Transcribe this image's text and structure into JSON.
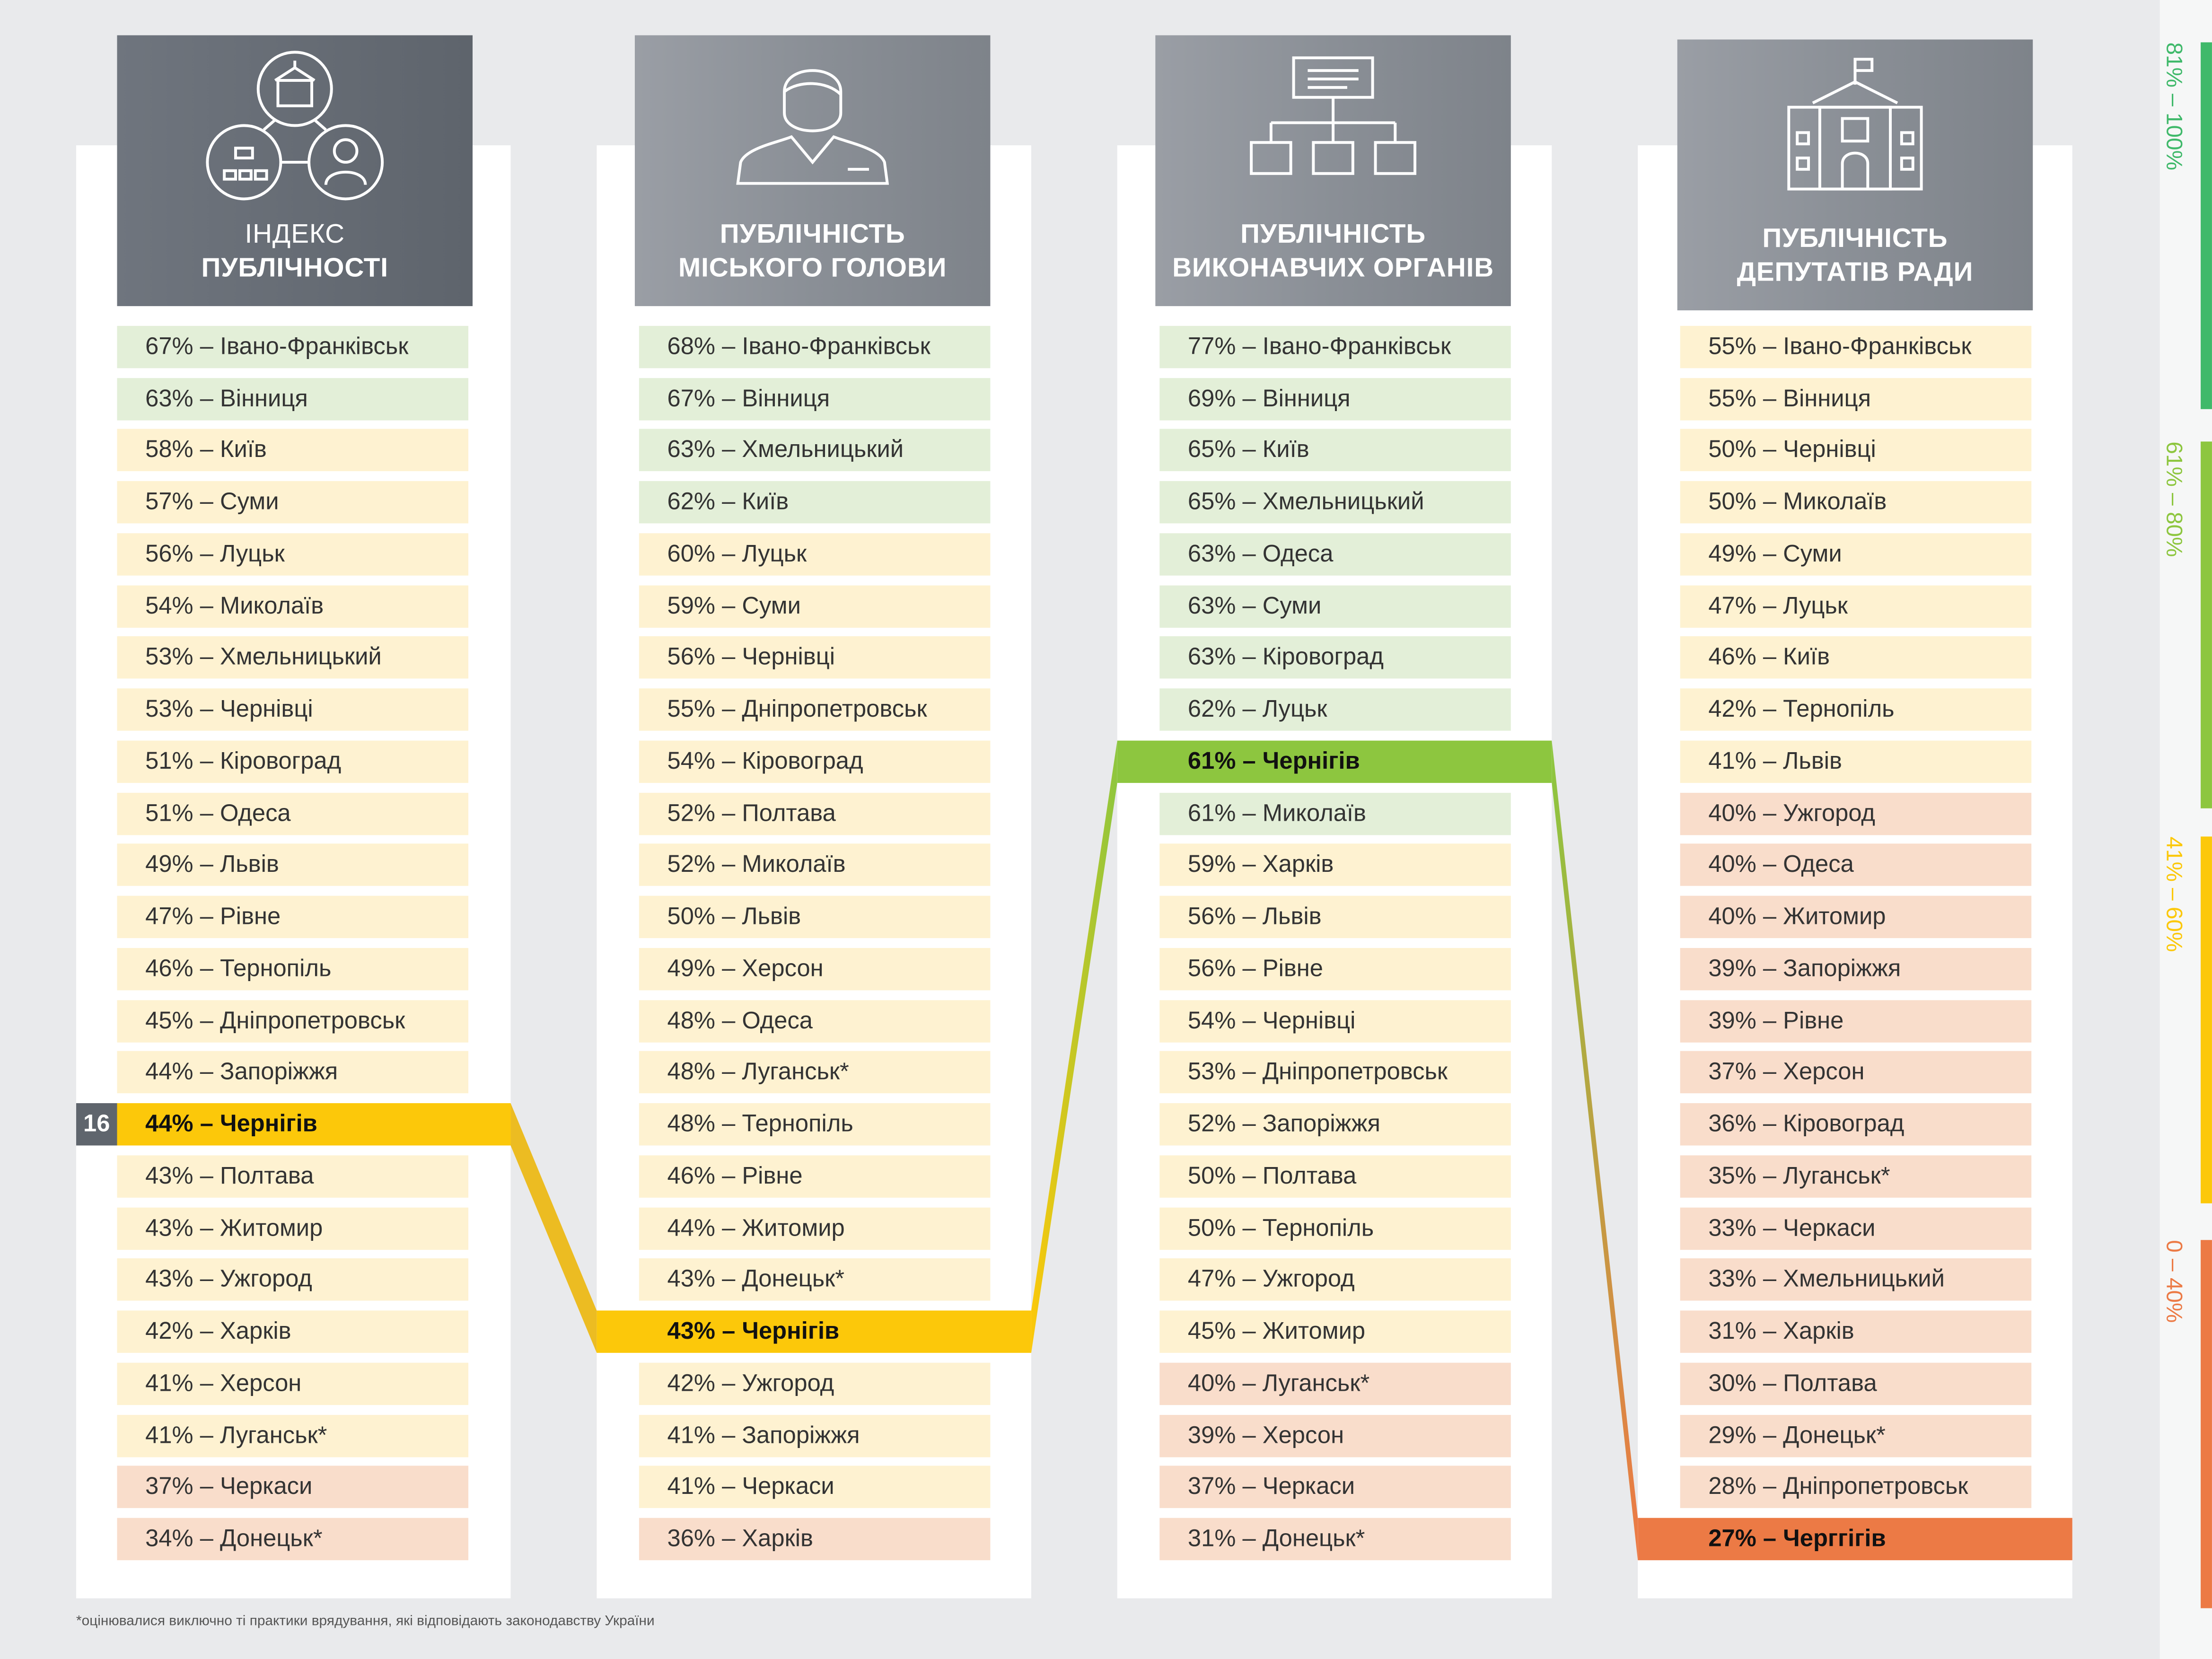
{
  "rank_badge": "16",
  "columns": [
    {
      "title_line1": "ІНДЕКС",
      "title_line2": "ПУБЛІЧНОСТІ",
      "icon": "network-icon",
      "highlight_index": 15,
      "highlight_color": "#fcc80a",
      "rows": [
        "67% – Івано-Франківськ",
        "63% – Вінниця",
        "58% – Київ",
        "57% – Суми",
        "56% – Луцьк",
        "54% – Миколаїв",
        "53% – Хмельницький",
        "53% – Чернівці",
        "51% – Кіровоград",
        "51% – Одеса",
        "49% – Львів",
        "47% – Рівне",
        "46% – Тернопіль",
        "45% – Дніпропетровськ",
        "44% – Запоріжжя",
        "44% – Чернігів",
        "43% – Полтава",
        "43% – Житомир",
        "43% – Ужгород",
        "42% – Харків",
        "41% – Херсон",
        "41% – Луганськ*",
        "37% – Черкаси",
        "34% – Донецьк*"
      ],
      "values": [
        67,
        63,
        58,
        57,
        56,
        54,
        53,
        53,
        51,
        51,
        49,
        47,
        46,
        45,
        44,
        44,
        43,
        43,
        43,
        42,
        41,
        41,
        37,
        34
      ]
    },
    {
      "title_line1": "ПУБЛІЧНІСТЬ",
      "title_line2": "МІСЬКОГО ГОЛОВИ",
      "icon": "mayor-person-icon",
      "highlight_index": 19,
      "highlight_color": "#fcc80a",
      "rows": [
        "68% – Івано-Франківськ",
        "67% – Вінниця",
        "63% – Хмельницький",
        "62% – Київ",
        "60% – Луцьк",
        "59% – Суми",
        "56% – Чернівці",
        "55% – Дніпропетровськ",
        "54% – Кіровоград",
        "52% – Полтава",
        "52% – Миколаїв",
        "50% – Львів",
        "49% – Херсон",
        "48% – Одеса",
        "48% – Луганськ*",
        "48% – Тернопіль",
        "46% – Рівне",
        "44% – Житомир",
        "43% – Донецьк*",
        "43% – Чернігів",
        "42% – Ужгород",
        "41% – Запоріжжя",
        "41% – Черкаси",
        "36% – Харків"
      ],
      "values": [
        68,
        67,
        63,
        62,
        60,
        59,
        56,
        55,
        54,
        52,
        52,
        50,
        49,
        48,
        48,
        48,
        46,
        44,
        43,
        43,
        42,
        41,
        41,
        36
      ]
    },
    {
      "title_line1": "ПУБЛІЧНІСТЬ",
      "title_line2": "ВИКОНАВЧИХ ОРГАНІВ",
      "icon": "org-chart-icon",
      "highlight_index": 8,
      "highlight_color": "#8dc63f",
      "rows": [
        "77% – Івано-Франківськ",
        "69% – Вінниця",
        "65% – Київ",
        "65% – Хмельницький",
        "63% – Одеса",
        "63% – Суми",
        "63% – Кіровоград",
        "62% – Луцьк",
        "61% – Чернігів",
        "61% – Миколаїв",
        "59% – Харків",
        "56% – Львів",
        "56% – Рівне",
        "54% – Чернівці",
        "53% – Дніпропетровськ",
        "52% – Запоріжжя",
        "50% – Полтава",
        "50% – Тернопіль",
        "47% – Ужгород",
        "45% – Житомир",
        "40% – Луганськ*",
        "39% – Херсон",
        "37% – Черкаси",
        "31% – Донецьк*"
      ],
      "values": [
        77,
        69,
        65,
        65,
        63,
        63,
        63,
        62,
        61,
        61,
        59,
        56,
        56,
        54,
        53,
        52,
        50,
        50,
        47,
        45,
        40,
        39,
        37,
        31
      ]
    },
    {
      "title_line1": "ПУБЛІЧНІСТЬ",
      "title_line2": "ДЕПУТАТІВ РАДИ",
      "icon": "council-building-icon",
      "highlight_index": 23,
      "highlight_color": "#ec7a45",
      "rows": [
        "55% – Івано-Франківськ",
        "55% – Вінниця",
        "50% – Чернівці",
        "50% – Миколаїв",
        "49% – Суми",
        "47% – Луцьк",
        "46% – Київ",
        "42% – Тернопіль",
        "41% – Львів",
        "40% – Ужгород",
        "40% – Одеса",
        "40% – Житомир",
        "39% – Запоріжжя",
        "39% – Рівне",
        "37% – Херсон",
        "36% – Кіровоград",
        "35% – Луганськ*",
        "33% – Черкаси",
        "33% – Хмельницький",
        "31% – Харків",
        "30% – Полтава",
        "29% – Донецьк*",
        "28% – Дніпропетровськ",
        "27% – Черггігів"
      ],
      "values": [
        55,
        55,
        50,
        50,
        49,
        47,
        46,
        42,
        41,
        40,
        40,
        40,
        39,
        39,
        37,
        36,
        35,
        33,
        33,
        31,
        30,
        29,
        28,
        27
      ]
    }
  ],
  "legend": [
    {
      "label": "81% – 100%",
      "color": "#3fb96a"
    },
    {
      "label": "61% – 80%",
      "color": "#8dc63f"
    },
    {
      "label": "41% – 60%",
      "color": "#fcc80a"
    },
    {
      "label": "0 – 40%",
      "color": "#ec7a45"
    }
  ],
  "footnote": "*оцінювалися виключно ті практики врядування, які відповідають законодавству України"
}
